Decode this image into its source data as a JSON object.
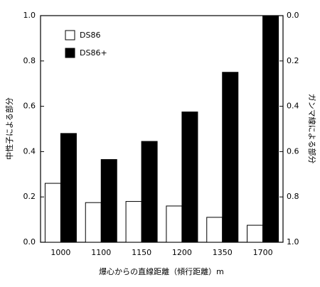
{
  "chart_data": {
    "type": "bar",
    "ylabel": "中性子による部分",
    "y2label": "ガンマ線による部分",
    "xlabel": "爆心からの直線距離（傾行距離）m",
    "categories": [
      "1000",
      "1100",
      "1150",
      "1200",
      "1350",
      "1700"
    ],
    "series": [
      {
        "name": "DS86",
        "color": "#ffffff",
        "values": [
          0.26,
          0.175,
          0.18,
          0.16,
          0.11,
          0.075
        ]
      },
      {
        "name": "DS86+",
        "color": "#000000",
        "values": [
          0.48,
          0.365,
          0.445,
          0.575,
          0.75,
          1.0
        ]
      }
    ],
    "ylim": [
      0,
      1
    ],
    "yticks": [
      {
        "value": 0,
        "label": "0.0"
      },
      {
        "value": 0.2,
        "label": "0.2"
      },
      {
        "value": 0.4,
        "label": "0.4"
      },
      {
        "value": 0.6,
        "label": "0.6"
      },
      {
        "value": 0.8,
        "label": "0.8"
      },
      {
        "value": 1,
        "label": "1.0"
      }
    ],
    "y2lim": [
      1,
      0
    ],
    "y2ticks": [
      {
        "value": 0,
        "label": "0.0"
      },
      {
        "value": 0.2,
        "label": "0.2"
      },
      {
        "value": 0.4,
        "label": "0.4"
      },
      {
        "value": 0.6,
        "label": "0.6"
      },
      {
        "value": 0.8,
        "label": "0.8"
      },
      {
        "value": 1,
        "label": "1.0"
      }
    ],
    "legend": "upper left"
  }
}
